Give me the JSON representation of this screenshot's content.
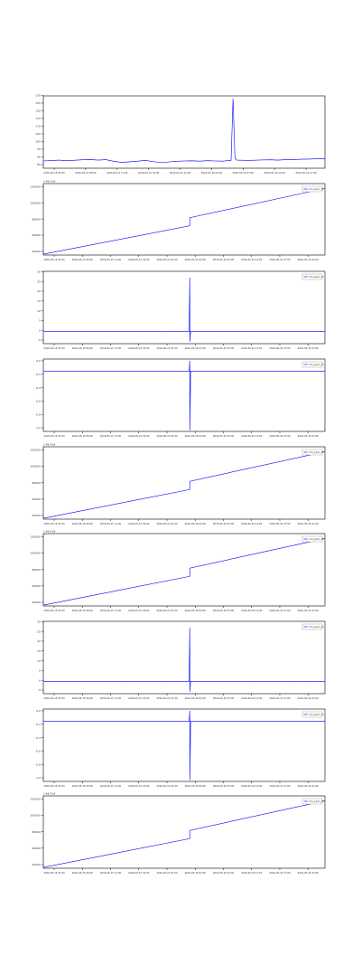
{
  "colors": {
    "line": "#0000ff",
    "axis": "#000000",
    "background": "#ffffff"
  },
  "chart_data": [
    {
      "type": "line",
      "legend": null,
      "offset_label": "",
      "ylim": [
        85,
        135
      ],
      "yticks": [
        "85",
        "90",
        "95",
        "100",
        "105",
        "110",
        "115",
        "120",
        "125",
        "130"
      ],
      "xticks": [
        "2016-05-15 01:00",
        "2016-05-15 06:00",
        "2016-05-15 11:00",
        "2016-05-15 16:00",
        "2016-05-15 21:00",
        "2016-05-16 02:00",
        "2016-05-16 07:00",
        "2016-05-16 12:00",
        "2016-05-16 17:00"
      ],
      "series": [
        {
          "values": [
            [
              0,
              90
            ],
            [
              4,
              90.3
            ],
            [
              8,
              90.6
            ],
            [
              12,
              90.2
            ],
            [
              16,
              90.5
            ],
            [
              20,
              90.8
            ],
            [
              24,
              91.0
            ],
            [
              28,
              90.6
            ],
            [
              32,
              90.9
            ],
            [
              36,
              89.8
            ],
            [
              40,
              89.0
            ],
            [
              44,
              89.4
            ],
            [
              48,
              89.8
            ],
            [
              52,
              90.4
            ],
            [
              56,
              89.6
            ],
            [
              60,
              88.9
            ],
            [
              64,
              89.3
            ],
            [
              68,
              89.8
            ],
            [
              72,
              90.0
            ],
            [
              76,
              90.1
            ],
            [
              80,
              89.9
            ],
            [
              84,
              90.2
            ],
            [
              88,
              90.0
            ],
            [
              92,
              89.9
            ],
            [
              96,
              90.5
            ],
            [
              97,
              133
            ],
            [
              98,
              92.0
            ],
            [
              99,
              90.6
            ],
            [
              104,
              90.4
            ],
            [
              108,
              90.5
            ],
            [
              112,
              90.7
            ],
            [
              116,
              90.8
            ],
            [
              120,
              90.6
            ],
            [
              124,
              90.9
            ],
            [
              128,
              91.0
            ],
            [
              132,
              91.2
            ],
            [
              136,
              91.3
            ],
            [
              140,
              91.5
            ],
            [
              144,
              91.6
            ]
          ]
        }
      ]
    },
    {
      "type": "line",
      "legend": "CO_ppm_1f",
      "offset_label": "1.4617e9",
      "ylim": [
        40000,
        128000
      ],
      "yticks": [
        "40000",
        "60000",
        "80000",
        "100000",
        "120000"
      ],
      "xticks": [
        "2016-05-15 01:00",
        "2016-05-15 06:00",
        "2016-05-15 11:00",
        "2016-05-15 16:00",
        "2016-05-15 21:00",
        "2016-05-16 02:00",
        "2016-05-16 07:00",
        "2016-05-16 12:00",
        "2016-05-16 17:00",
        "2016-05-16 22:00"
      ],
      "series": [
        {
          "values": [
            [
              0,
              41000
            ],
            [
              52,
              76000
            ],
            [
              52,
              86000
            ],
            [
              100,
              122000
            ]
          ]
        }
      ]
    },
    {
      "type": "line",
      "legend": "CO_ppm_1f",
      "offset_label": "",
      "ylim": [
        -5,
        30
      ],
      "yticks": [
        "-5",
        "0",
        "5",
        "10",
        "15",
        "20",
        "25",
        "30"
      ],
      "xticks": [
        "2016-05-15 01:00",
        "2016-05-15 06:00",
        "2016-05-15 11:00",
        "2016-05-15 16:00",
        "2016-05-15 21:00",
        "2016-05-16 02:00",
        "2016-05-16 07:00",
        "2016-05-16 12:00",
        "2016-05-16 17:00",
        "2016-05-16 22:00"
      ],
      "series": [
        {
          "values": [
            [
              0,
              1
            ],
            [
              51.8,
              1
            ],
            [
              52,
              27
            ],
            [
              52.1,
              -4
            ],
            [
              52.3,
              1
            ],
            [
              100,
              1
            ]
          ]
        }
      ]
    },
    {
      "type": "line",
      "legend": "CO_ppm_1f",
      "offset_label": "",
      "ylim": [
        -1.0,
        0.2
      ],
      "yticks": [
        "-1.0",
        "-0.8",
        "-0.6",
        "-0.4",
        "-0.2",
        "0.0"
      ],
      "xticks": [
        "2016-05-15 01:00",
        "2016-05-15 06:00",
        "2016-05-15 11:00",
        "2016-05-15 16:00",
        "2016-05-15 21:00",
        "2016-05-16 02:00",
        "2016-05-16 07:00",
        "2016-05-16 12:00",
        "2016-05-16 17:00",
        "2016-05-16 22:00"
      ],
      "series": [
        {
          "values": [
            [
              0,
              0
            ],
            [
              51.8,
              0
            ],
            [
              52,
              0.17
            ],
            [
              52.1,
              -0.98
            ],
            [
              52.3,
              0
            ],
            [
              100,
              0
            ]
          ]
        }
      ]
    },
    {
      "type": "line",
      "legend": "CO_ppm_1f",
      "offset_label": "1.4617e9",
      "ylim": [
        40000,
        128000
      ],
      "yticks": [
        "40000",
        "60000",
        "80000",
        "100000",
        "120000"
      ],
      "xticks": [
        "2016-05-15 01:00",
        "2016-05-15 06:00",
        "2016-05-15 11:00",
        "2016-05-15 16:00",
        "2016-05-15 21:00",
        "2016-05-16 02:00",
        "2016-05-16 07:00",
        "2016-05-16 12:00",
        "2016-05-16 17:00",
        "2016-05-16 22:00"
      ],
      "series": [
        {
          "values": [
            [
              0,
              41000
            ],
            [
              52,
              76000
            ],
            [
              52,
              86000
            ],
            [
              100,
              122000
            ]
          ]
        }
      ]
    },
    {
      "type": "line",
      "legend": "CO_ppm_1f",
      "offset_label": "1.4617e9",
      "ylim": [
        40000,
        128000
      ],
      "yticks": [
        "40000",
        "60000",
        "80000",
        "100000",
        "120000"
      ],
      "xticks": [
        "2016-05-15 01:00",
        "2016-05-15 06:00",
        "2016-05-15 11:00",
        "2016-05-15 16:00",
        "2016-05-15 21:00",
        "2016-05-16 02:00",
        "2016-05-16 07:00",
        "2016-05-16 12:00",
        "2016-05-16 17:00",
        "2016-05-16 22:00"
      ],
      "series": [
        {
          "values": [
            [
              0,
              41000
            ],
            [
              52,
              76000
            ],
            [
              52,
              86000
            ],
            [
              100,
              122000
            ]
          ]
        }
      ]
    },
    {
      "type": "line",
      "legend": "CO_ppm_1f",
      "offset_label": "",
      "ylim": [
        -5,
        30
      ],
      "yticks": [
        "-5",
        "0",
        "5",
        "10",
        "15",
        "20",
        "25",
        "30"
      ],
      "xticks": [
        "2016-05-15 01:00",
        "2016-05-15 06:00",
        "2016-05-15 11:00",
        "2016-05-15 16:00",
        "2016-05-15 21:00",
        "2016-05-16 02:00",
        "2016-05-16 07:00",
        "2016-05-16 12:00",
        "2016-05-16 17:00",
        "2016-05-16 22:00"
      ],
      "series": [
        {
          "values": [
            [
              0,
              1
            ],
            [
              51.8,
              1
            ],
            [
              52,
              27
            ],
            [
              52.1,
              -4
            ],
            [
              52.3,
              1
            ],
            [
              100,
              1
            ]
          ]
        }
      ]
    },
    {
      "type": "line",
      "legend": "CO_ppm_1f",
      "offset_label": "",
      "ylim": [
        -1.0,
        0.2
      ],
      "yticks": [
        "-1.0",
        "-0.8",
        "-0.6",
        "-0.4",
        "-0.2",
        "0.0"
      ],
      "xticks": [
        "2016-05-15 01:00",
        "2016-05-15 06:00",
        "2016-05-15 11:00",
        "2016-05-15 16:00",
        "2016-05-15 21:00",
        "2016-05-16 02:00",
        "2016-05-16 07:00",
        "2016-05-16 12:00",
        "2016-05-16 17:00",
        "2016-05-16 22:00"
      ],
      "series": [
        {
          "values": [
            [
              0,
              0
            ],
            [
              51.8,
              0
            ],
            [
              52,
              0.17
            ],
            [
              52.1,
              -0.98
            ],
            [
              52.3,
              0
            ],
            [
              100,
              0
            ]
          ]
        }
      ]
    },
    {
      "type": "line",
      "legend": "CO_ppm_1f",
      "offset_label": "1.4617e9",
      "ylim": [
        40000,
        128000
      ],
      "yticks": [
        "40000",
        "60000",
        "80000",
        "100000",
        "120000"
      ],
      "xticks": [
        "2016-05-15 01:00",
        "2016-05-15 06:00",
        "2016-05-15 11:00",
        "2016-05-15 16:00",
        "2016-05-15 21:00",
        "2016-05-16 02:00",
        "2016-05-16 07:00",
        "2016-05-16 12:00",
        "2016-05-16 17:00",
        "2016-05-16 22:00"
      ],
      "series": [
        {
          "values": [
            [
              0,
              41000
            ],
            [
              52,
              76000
            ],
            [
              52,
              86000
            ],
            [
              100,
              122000
            ]
          ]
        }
      ]
    }
  ]
}
